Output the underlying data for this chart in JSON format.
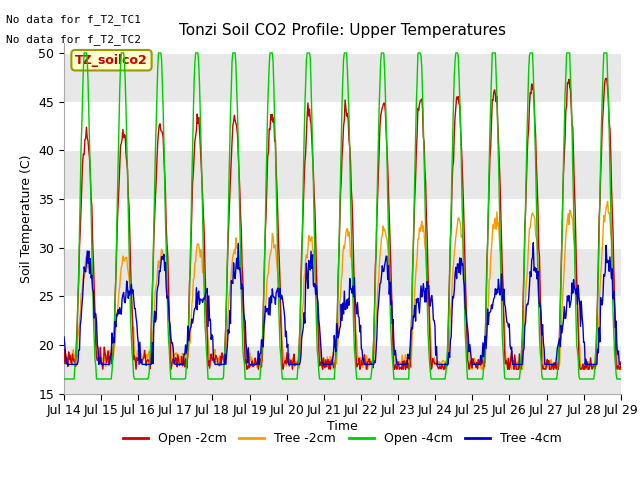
{
  "title": "Tonzi Soil CO2 Profile: Upper Temperatures",
  "ylabel": "Soil Temperature (C)",
  "xlabel": "Time",
  "annotations": [
    "No data for f_T2_TC1",
    "No data for f_T2_TC2"
  ],
  "legend_label": "TZ_soilco2",
  "ylim": [
    15,
    51
  ],
  "yticks": [
    15,
    20,
    25,
    30,
    35,
    40,
    45,
    50
  ],
  "series_labels": [
    "Open -2cm",
    "Tree -2cm",
    "Open -4cm",
    "Tree -4cm"
  ],
  "series_colors": [
    "#cc0000",
    "#ff9900",
    "#00cc00",
    "#0000cc"
  ],
  "bg_color": "#ffffff",
  "fig_bg": "#ffffff",
  "band_colors": [
    "#e8e8e8",
    "#ffffff"
  ],
  "n_days": 15,
  "start_day": 14,
  "points_per_day": 48
}
